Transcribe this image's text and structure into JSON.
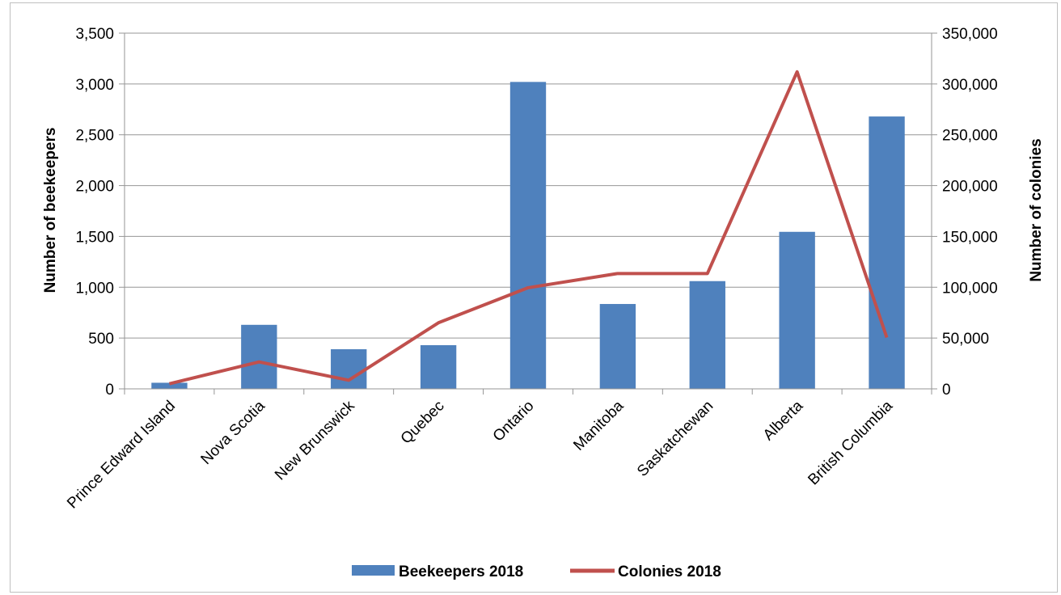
{
  "chart_data": {
    "type": "bar",
    "categories": [
      "Prince Edward Island",
      "Nova Scotia",
      "New Brunswick",
      "Quebec",
      "Ontario",
      "Manitoba",
      "Saskatchewan",
      "Alberta",
      "British Columbia"
    ],
    "series": [
      {
        "name": "Beekeepers 2018",
        "type": "bar",
        "axis": "left",
        "color": "#4f81bd",
        "values": [
          60,
          630,
          390,
          430,
          3020,
          835,
          1060,
          1545,
          2680
        ]
      },
      {
        "name": "Colonies 2018",
        "type": "line",
        "axis": "right",
        "color": "#c0504d",
        "values": [
          5000,
          26500,
          8500,
          65000,
          99500,
          113500,
          113500,
          312000,
          50500
        ]
      }
    ],
    "ylabel": "Number of beekeepers",
    "y2label": "Number of colonies",
    "ylim": [
      0,
      3500
    ],
    "y2lim": [
      0,
      350000
    ],
    "yticks": [
      "0",
      "500",
      "1,000",
      "1,500",
      "2,000",
      "2,500",
      "3,000",
      "3,500"
    ],
    "y2ticks": [
      "0",
      "50,000",
      "100,000",
      "150,000",
      "200,000",
      "250,000",
      "300,000",
      "350,000"
    ],
    "grid": true,
    "legend": "bottom"
  }
}
